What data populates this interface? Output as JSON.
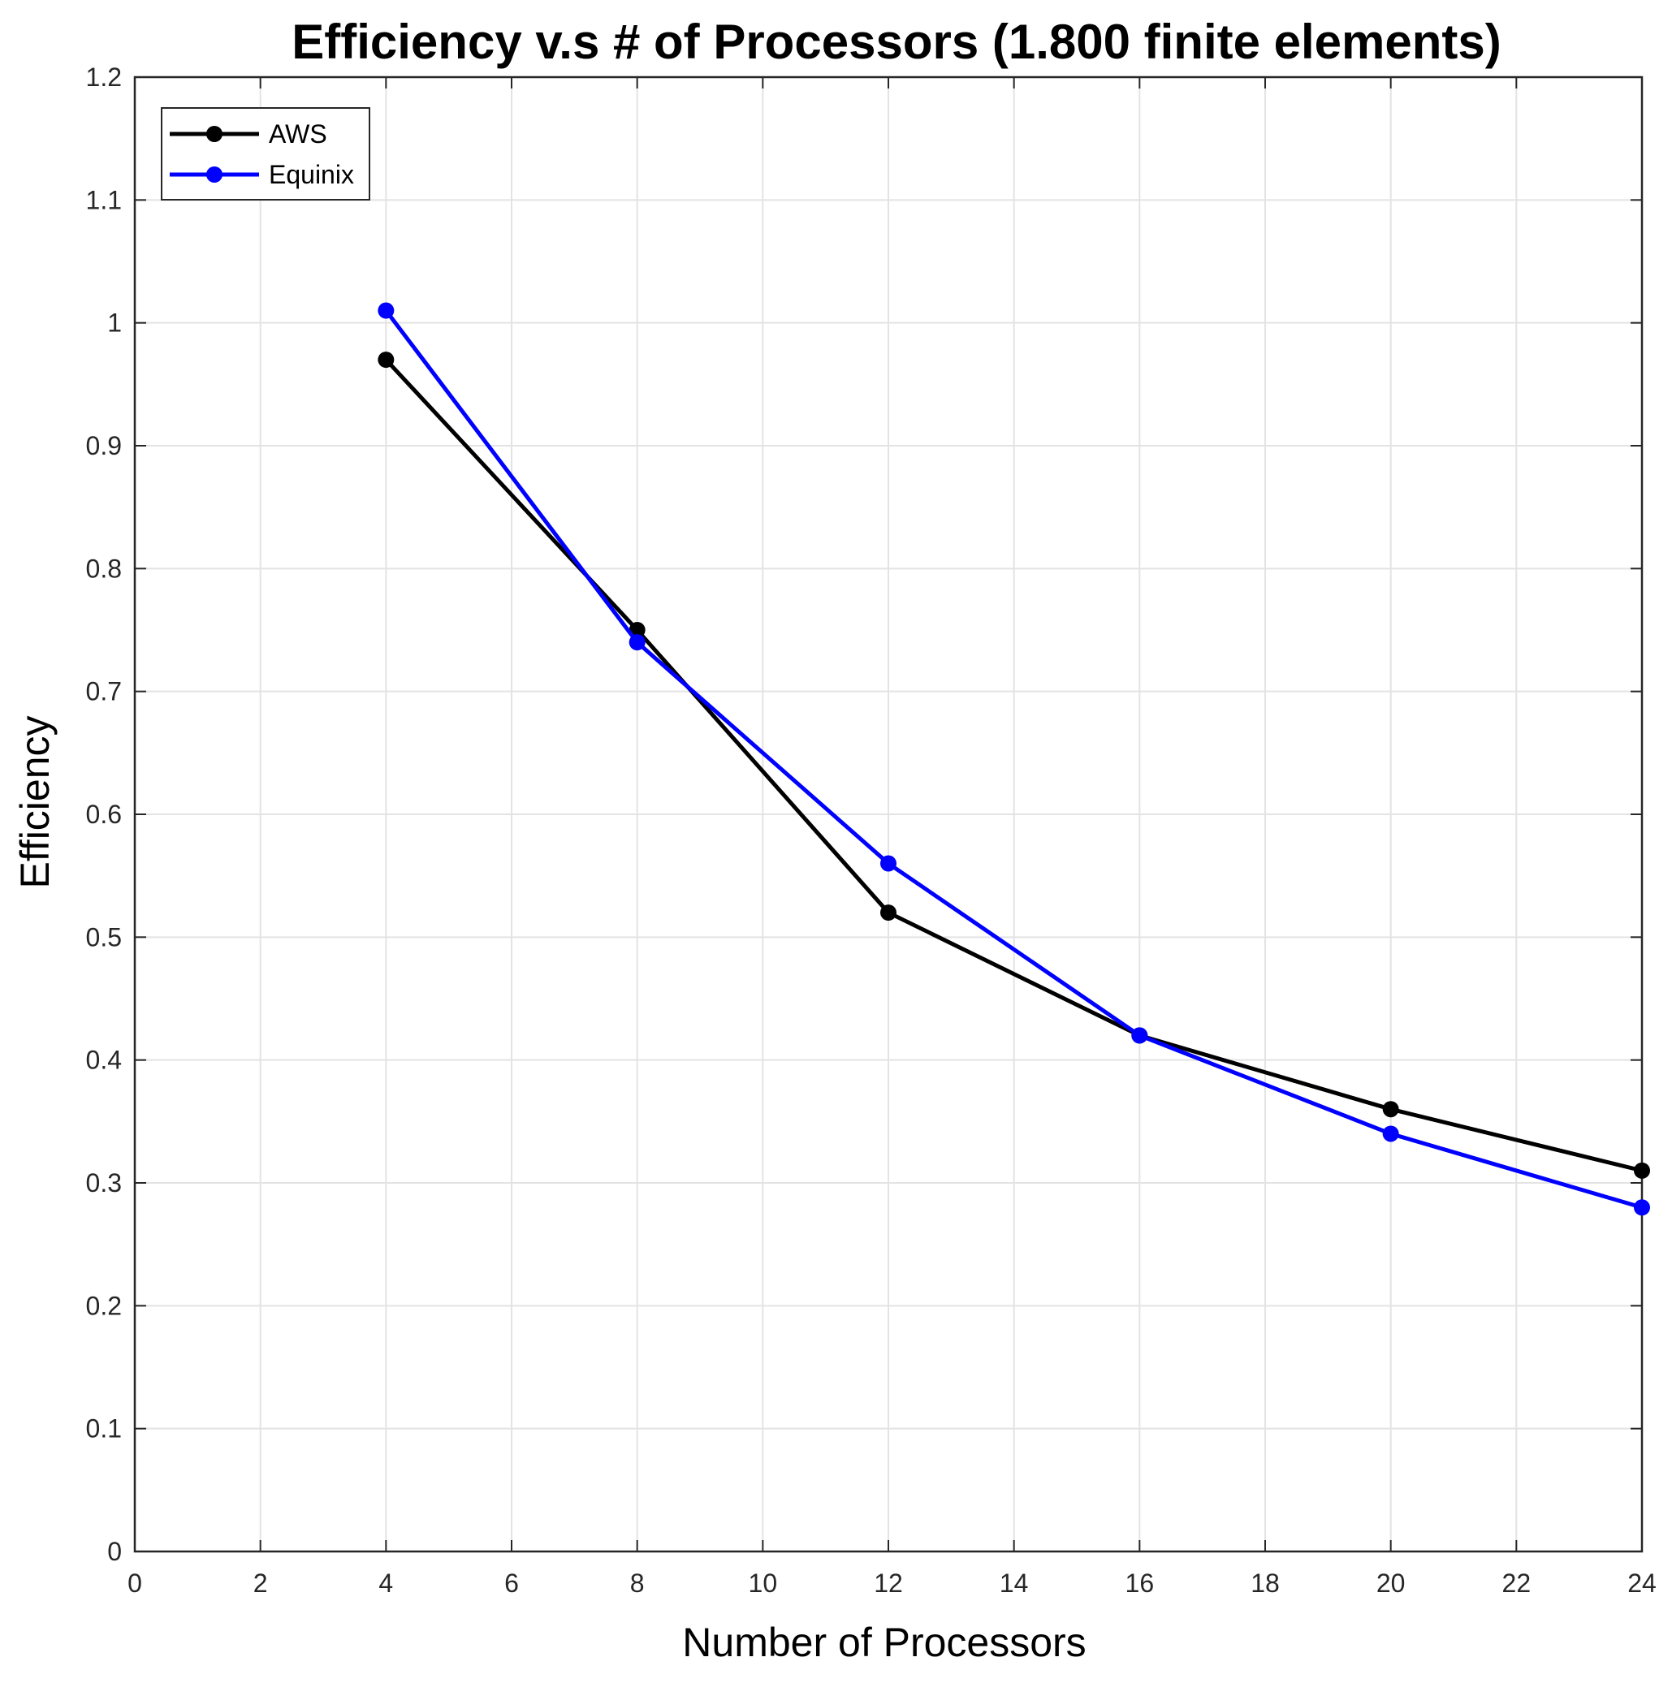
{
  "chart_data": {
    "type": "line",
    "title": "Efficiency v.s # of Processors (1.800 finite elements)",
    "xlabel": "Number of Processors",
    "ylabel": "Efficiency",
    "xlim": [
      0,
      24
    ],
    "ylim": [
      0,
      1.2
    ],
    "xticks": [
      0,
      2,
      4,
      6,
      8,
      10,
      12,
      14,
      16,
      18,
      20,
      22,
      24
    ],
    "yticks": [
      0,
      0.1,
      0.2,
      0.3,
      0.4,
      0.5,
      0.6,
      0.7,
      0.8,
      0.9,
      1,
      1.1,
      1.2
    ],
    "xtick_labels": [
      "0",
      "2",
      "4",
      "6",
      "8",
      "10",
      "12",
      "14",
      "16",
      "18",
      "20",
      "22",
      "24"
    ],
    "ytick_labels": [
      "0",
      "0.1",
      "0.2",
      "0.3",
      "0.4",
      "0.5",
      "0.6",
      "0.7",
      "0.8",
      "0.9",
      "1",
      "1.1",
      "1.2"
    ],
    "grid": true,
    "legend_position": "top-left",
    "x": [
      4,
      8,
      12,
      16,
      20,
      24
    ],
    "series": [
      {
        "name": "AWS",
        "color": "#000000",
        "values": [
          0.97,
          0.75,
          0.52,
          0.42,
          0.36,
          0.31
        ]
      },
      {
        "name": "Equinix",
        "color": "#0000ff",
        "values": [
          1.01,
          0.74,
          0.56,
          0.42,
          0.34,
          0.28
        ]
      }
    ]
  }
}
